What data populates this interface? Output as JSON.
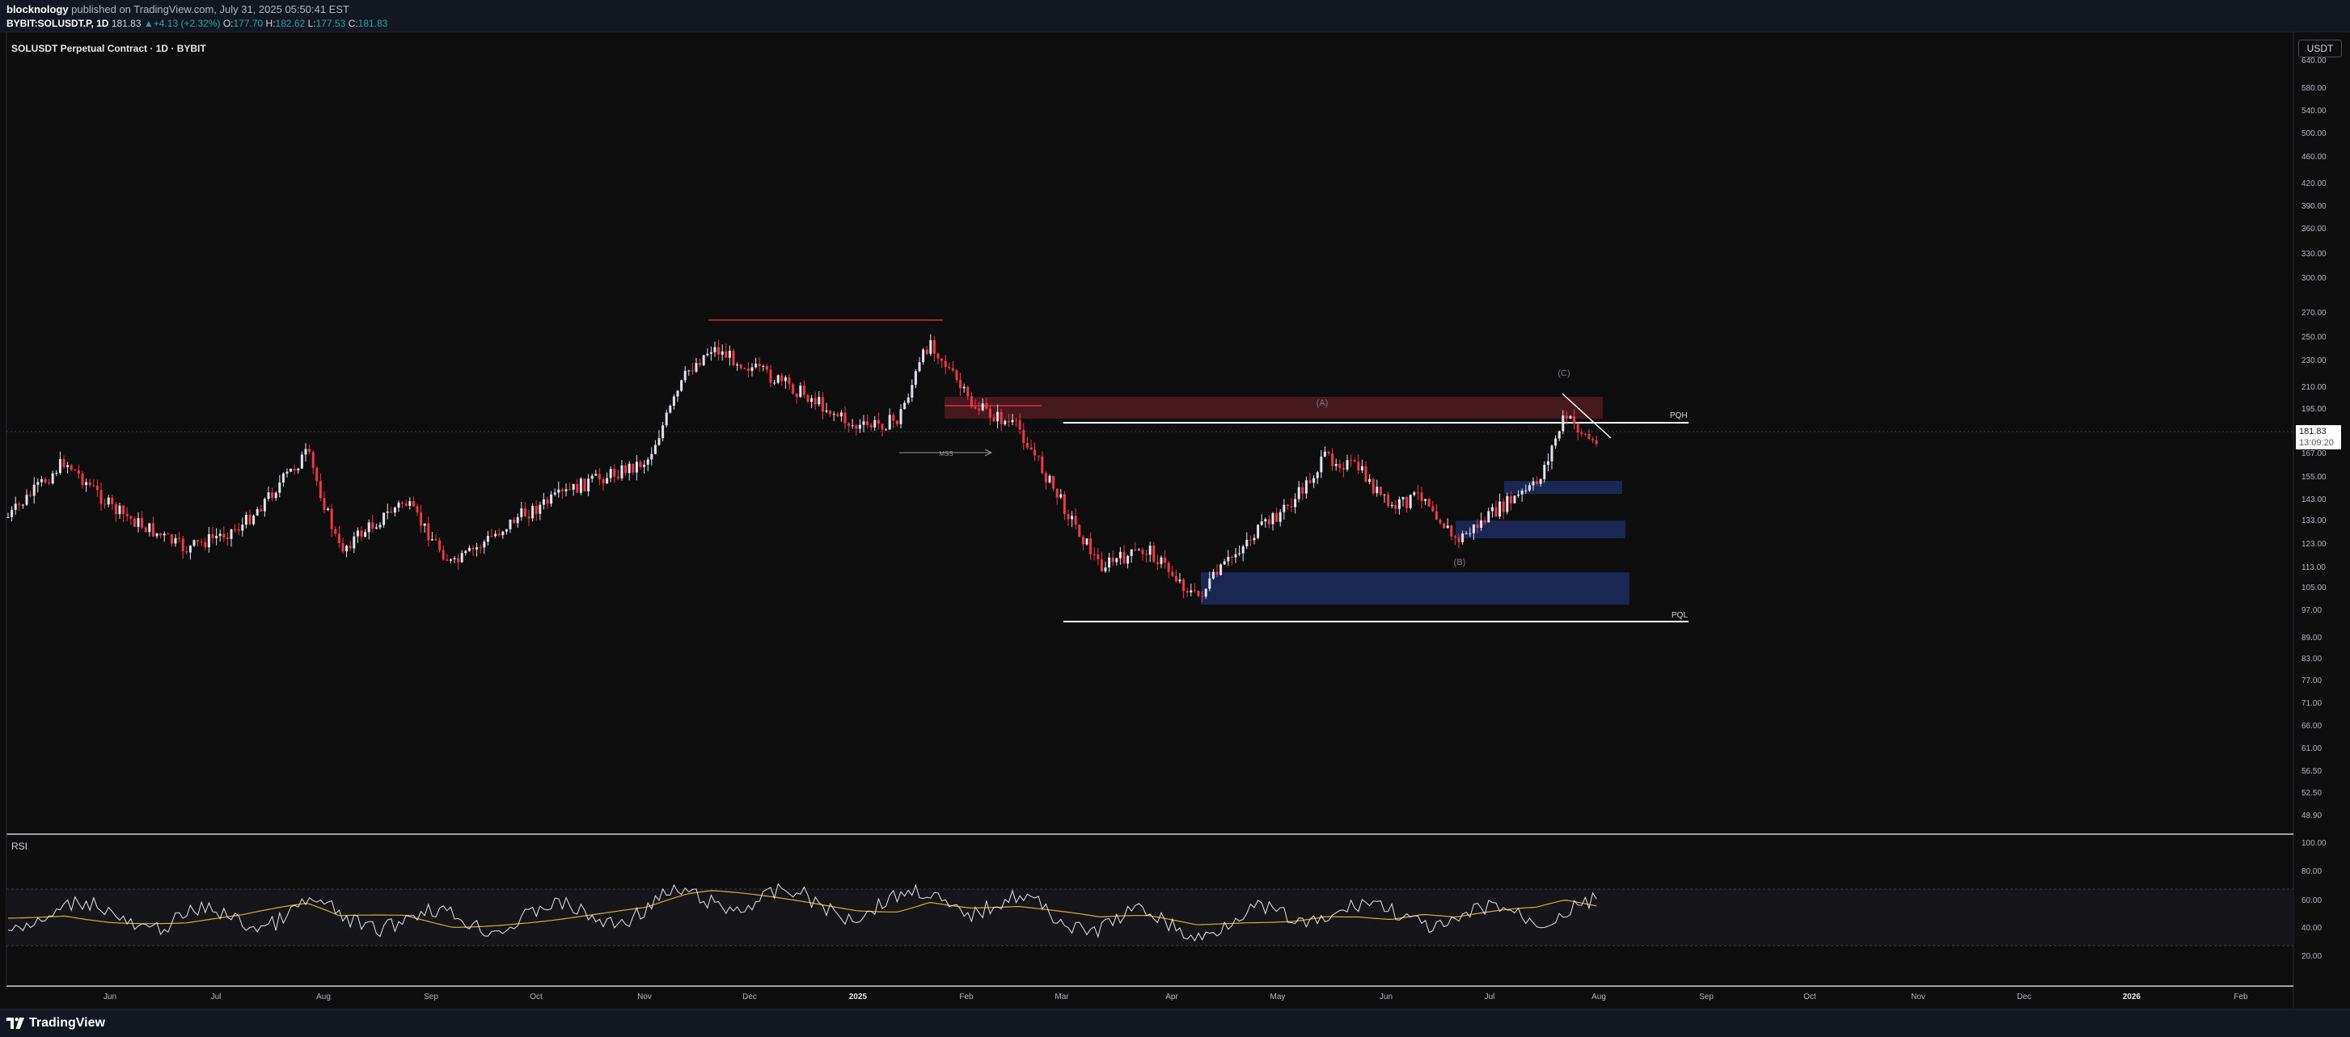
{
  "header": {
    "publisher": "blocknology",
    "publish_rest": " published on TradingView.com, July 31, 2025 05:50:41 EST",
    "symbol": "BYBIT:SOLUSDT.P, 1D",
    "last": "181.83",
    "change_arrow": "▲",
    "change": "+4.13 (+2.32%)",
    "o_label": "O:",
    "o_value": "177.70",
    "h_label": "H:",
    "h_value": "182.62",
    "l_label": "L:",
    "l_value": "177.53",
    "c_label": "C:",
    "c_value": "181.83"
  },
  "chart": {
    "title": "SOLUSDT Perpetual Contract · 1D · BYBIT",
    "currency": "USDT",
    "current_price": "181.83",
    "countdown": "13:09:20",
    "price_axis_labels": [
      "640.00",
      "580.00",
      "540.00",
      "500.00",
      "460.00",
      "420.00",
      "390.00",
      "360.00",
      "330.00",
      "300.00",
      "270.00",
      "250.00",
      "230.00",
      "210.00",
      "195.00",
      "181.83",
      "167.00",
      "155.00",
      "143.00",
      "133.00",
      "123.00",
      "113.00",
      "105.00",
      "97.00",
      "89.00",
      "83.00",
      "77.00",
      "71.00",
      "66.00",
      "61.00",
      "56.50",
      "52.50",
      "48.90"
    ],
    "time_axis_labels": [
      "Jun",
      "Jul",
      "Aug",
      "Sep",
      "Oct",
      "Nov",
      "Dec",
      "2025",
      "Feb",
      "Mar",
      "Apr",
      "May",
      "Jun",
      "Jul",
      "Aug",
      "Sep",
      "Oct",
      "Nov",
      "Dec",
      "2026",
      "Feb"
    ],
    "rsi_label": "RSI",
    "rsi_axis_labels": [
      "100.00",
      "80.00",
      "60.00",
      "40.00",
      "20.00"
    ],
    "annotations": {
      "wave_a": "(A)",
      "wave_b": "(B)",
      "wave_c": "(C)",
      "pqh": "PQH",
      "pql": "PQL",
      "mss": "MSS"
    },
    "colors": {
      "bull": "#e0e3eb",
      "bear": "#f23645",
      "resistance_zone": "#5a1d24",
      "support_zone": "#1c2a5a",
      "rsi_line": "#e6e6e6",
      "rsi_ma": "#c9b53c"
    }
  },
  "footer": {
    "brand": "TradingView"
  }
}
